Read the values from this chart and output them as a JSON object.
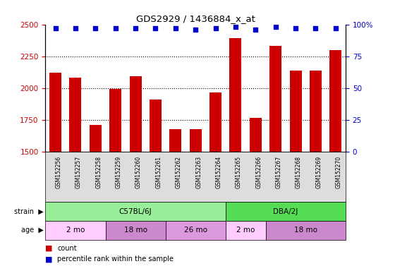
{
  "title": "GDS2929 / 1436884_x_at",
  "samples": [
    "GSM152256",
    "GSM152257",
    "GSM152258",
    "GSM152259",
    "GSM152260",
    "GSM152261",
    "GSM152262",
    "GSM152263",
    "GSM152264",
    "GSM152265",
    "GSM152266",
    "GSM152267",
    "GSM152268",
    "GSM152269",
    "GSM152270"
  ],
  "counts": [
    2120,
    2080,
    1710,
    1995,
    2095,
    1910,
    1680,
    1680,
    1965,
    2390,
    1765,
    2330,
    2135,
    2140,
    2300
  ],
  "percentile_ranks": [
    97,
    97,
    97,
    97,
    97,
    97,
    97,
    96,
    97,
    98,
    96,
    98,
    97,
    97,
    97
  ],
  "ylim_left": [
    1500,
    2500
  ],
  "ylim_right": [
    0,
    100
  ],
  "yticks_left": [
    1500,
    1750,
    2000,
    2250,
    2500
  ],
  "yticks_right": [
    0,
    25,
    50,
    75,
    100
  ],
  "bar_color": "#cc0000",
  "dot_color": "#0000cc",
  "bar_width": 0.6,
  "strain_labels": [
    {
      "label": "C57BL/6J",
      "start": 0,
      "end": 8
    },
    {
      "label": "DBA/2J",
      "start": 9,
      "end": 14
    }
  ],
  "strain_colors": {
    "C57BL/6J": "#99ee99",
    "DBA/2J": "#55dd55"
  },
  "age_labels": [
    {
      "label": "2 mo",
      "start": 0,
      "end": 2
    },
    {
      "label": "18 mo",
      "start": 3,
      "end": 5
    },
    {
      "label": "26 mo",
      "start": 6,
      "end": 8
    },
    {
      "label": "2 mo",
      "start": 9,
      "end": 10
    },
    {
      "label": "18 mo",
      "start": 11,
      "end": 14
    }
  ],
  "age_colors": {
    "2 mo": "#ffccff",
    "18 mo": "#cc88cc",
    "26 mo": "#dd99dd"
  },
  "legend_count_color": "#cc0000",
  "legend_dot_color": "#0000cc",
  "left_tick_color": "#cc0000",
  "right_tick_color": "#0000cc",
  "grid_yticks": [
    1750,
    2000,
    2250
  ],
  "xticklabel_bg": "#dddddd"
}
